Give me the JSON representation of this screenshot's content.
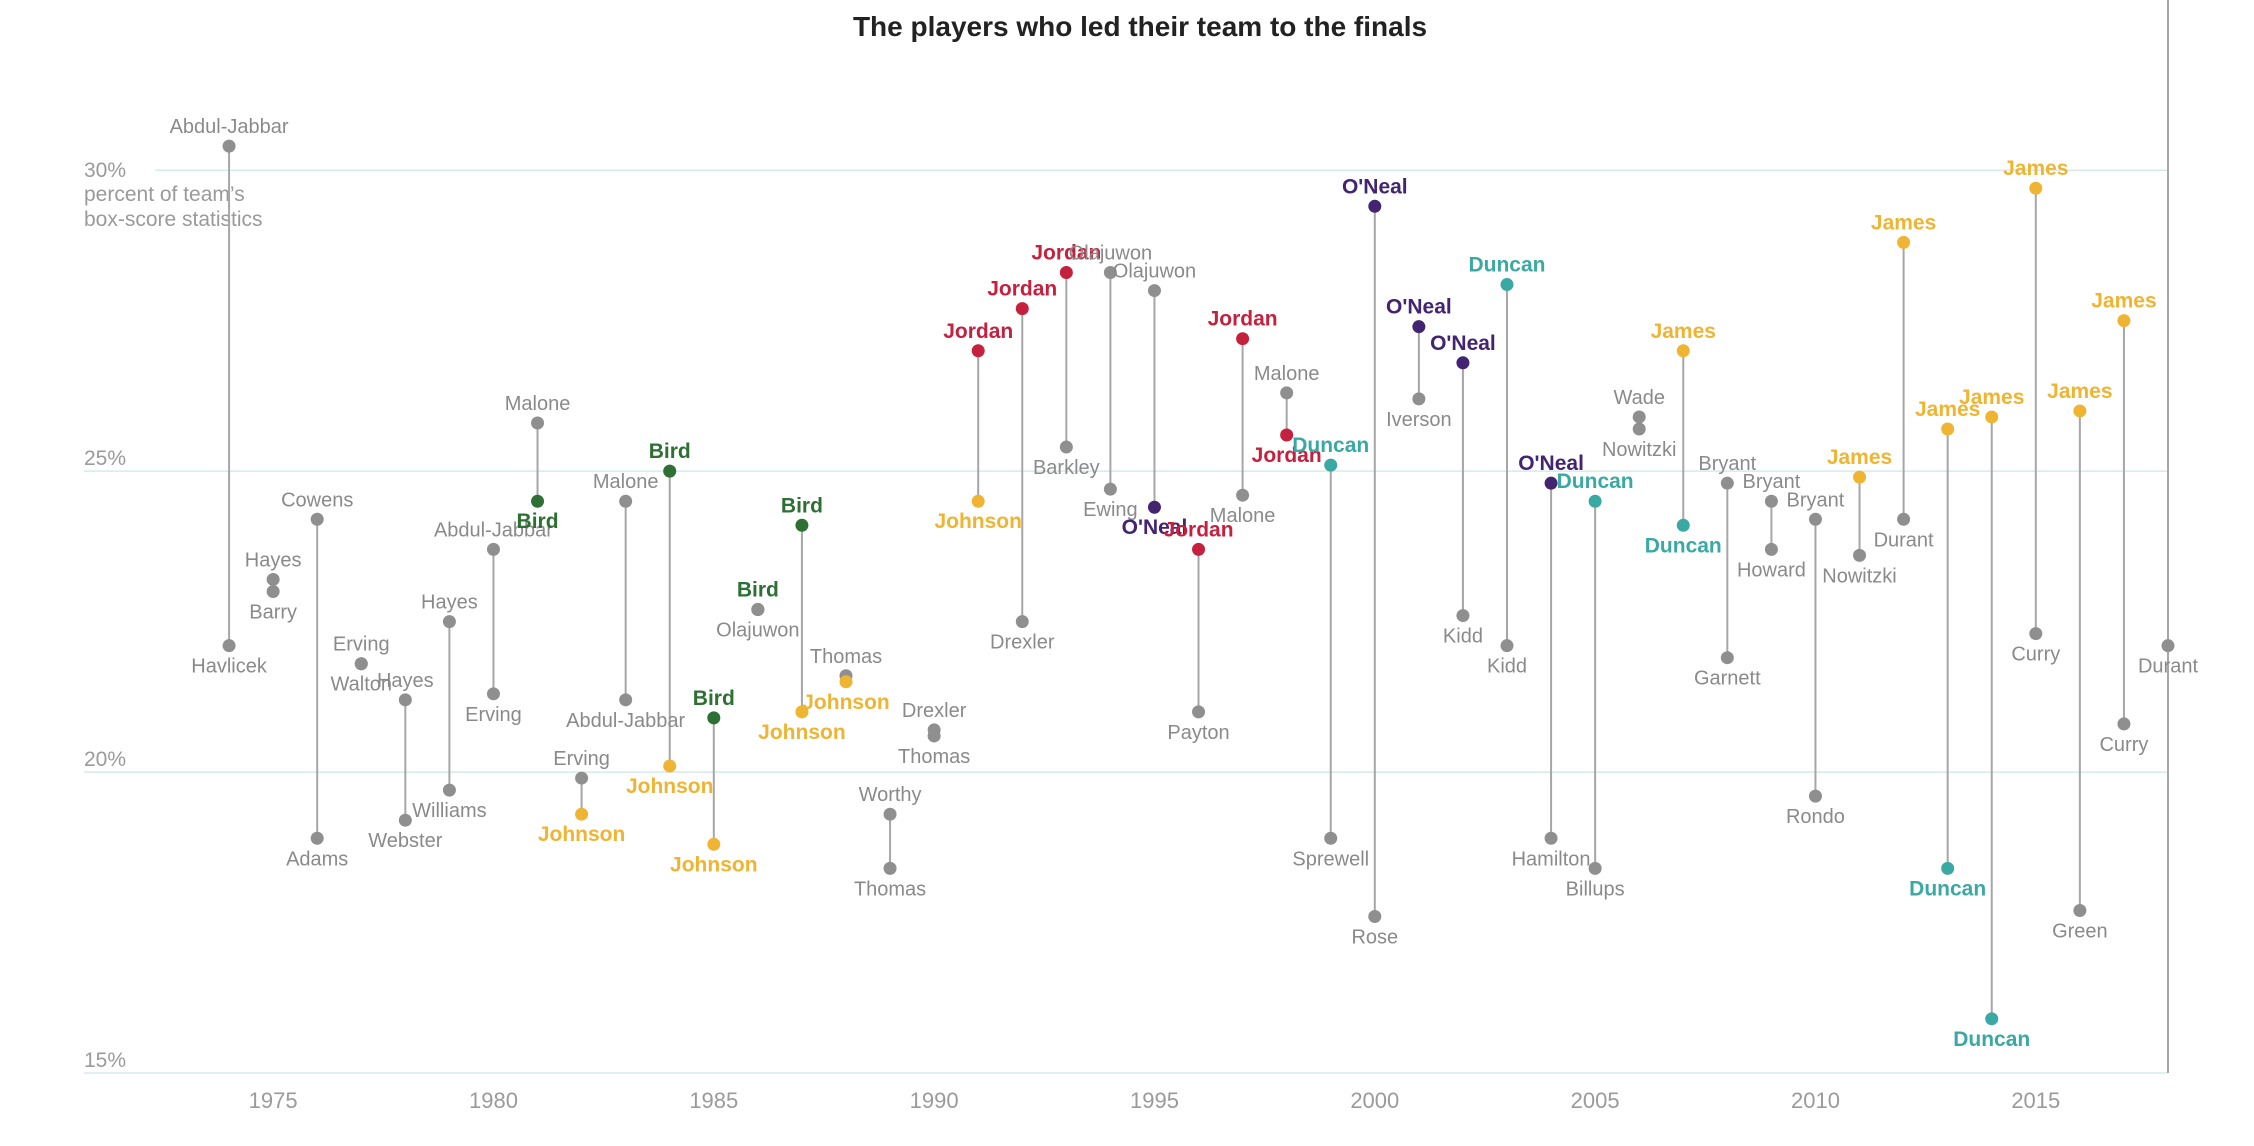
{
  "chart_data": {
    "type": "scatter",
    "title": "The players who led their team to the finals",
    "ylabel_unit": "percent of team’s box-score statistics",
    "y_first_tick_label": "30%",
    "xlim": [
      1973,
      2018
    ],
    "ylim": [
      15,
      31
    ],
    "x_ticks": [
      1975,
      1980,
      1985,
      1990,
      1995,
      2000,
      2005,
      2010,
      2015
    ],
    "y_ticks": [
      {
        "value": 15,
        "label": "15%"
      },
      {
        "value": 20,
        "label": "20%"
      },
      {
        "value": 25,
        "label": "25%"
      }
    ],
    "grid": true,
    "legend": "none",
    "colors": {
      "gray": "#8f8f8f",
      "Bird": "#2e7033",
      "Johnson": "#f0b433",
      "Jordan": "#c5203e",
      "O'Neal": "#432470",
      "Duncan": "#3aa9a3",
      "James": "#f0b433"
    },
    "finals": [
      {
        "year": 1974,
        "players": [
          {
            "name": "Abdul-Jabbar",
            "value": 30.4
          },
          {
            "name": "Havlicek",
            "value": 22.1
          }
        ]
      },
      {
        "year": 1975,
        "players": [
          {
            "name": "Hayes",
            "value": 23.2
          },
          {
            "name": "Barry",
            "value": 23.0
          }
        ]
      },
      {
        "year": 1976,
        "players": [
          {
            "name": "Cowens",
            "value": 24.2
          },
          {
            "name": "Adams",
            "value": 18.9
          }
        ]
      },
      {
        "year": 1977,
        "players": [
          {
            "name": "Erving",
            "value": 21.8
          },
          {
            "name": "Walton",
            "value": 21.8
          }
        ]
      },
      {
        "year": 1978,
        "players": [
          {
            "name": "Hayes",
            "value": 21.2
          },
          {
            "name": "Webster",
            "value": 19.2
          }
        ]
      },
      {
        "year": 1979,
        "players": [
          {
            "name": "Hayes",
            "value": 22.5
          },
          {
            "name": "Williams",
            "value": 19.7
          }
        ]
      },
      {
        "year": 1980,
        "players": [
          {
            "name": "Abdul-Jabbar",
            "value": 23.7
          },
          {
            "name": "Erving",
            "value": 21.3
          }
        ]
      },
      {
        "year": 1981,
        "players": [
          {
            "name": "Malone",
            "value": 25.8
          },
          {
            "name": "Bird",
            "value": 24.5,
            "team": "Bird"
          }
        ]
      },
      {
        "year": 1982,
        "players": [
          {
            "name": "Erving",
            "value": 19.9
          },
          {
            "name": "Johnson",
            "value": 19.3,
            "team": "Johnson"
          }
        ]
      },
      {
        "year": 1983,
        "players": [
          {
            "name": "Malone",
            "value": 24.5
          },
          {
            "name": "Abdul-Jabbar",
            "value": 21.2
          }
        ]
      },
      {
        "year": 1984,
        "players": [
          {
            "name": "Bird",
            "value": 25.0,
            "team": "Bird"
          },
          {
            "name": "Johnson",
            "value": 20.1,
            "team": "Johnson"
          }
        ]
      },
      {
        "year": 1985,
        "players": [
          {
            "name": "Bird",
            "value": 20.9,
            "team": "Bird"
          },
          {
            "name": "Johnson",
            "value": 18.8,
            "team": "Johnson"
          }
        ]
      },
      {
        "year": 1986,
        "players": [
          {
            "name": "Bird",
            "value": 22.7,
            "team": "Bird"
          },
          {
            "name": "Olajuwon",
            "value": 22.7
          }
        ]
      },
      {
        "year": 1987,
        "players": [
          {
            "name": "Bird",
            "value": 24.1,
            "team": "Bird"
          },
          {
            "name": "Johnson",
            "value": 21.0,
            "team": "Johnson"
          }
        ]
      },
      {
        "year": 1988,
        "players": [
          {
            "name": "Thomas",
            "value": 21.6
          },
          {
            "name": "Johnson",
            "value": 21.5,
            "team": "Johnson"
          }
        ]
      },
      {
        "year": 1989,
        "players": [
          {
            "name": "Worthy",
            "value": 19.3
          },
          {
            "name": "Thomas",
            "value": 18.4
          }
        ]
      },
      {
        "year": 1990,
        "players": [
          {
            "name": "Drexler",
            "value": 20.7
          },
          {
            "name": "Thomas",
            "value": 20.6
          }
        ]
      },
      {
        "year": 1991,
        "players": [
          {
            "name": "Jordan",
            "value": 27.0,
            "team": "Jordan"
          },
          {
            "name": "Johnson",
            "value": 24.5,
            "team": "Johnson"
          }
        ]
      },
      {
        "year": 1992,
        "players": [
          {
            "name": "Jordan",
            "value": 27.7,
            "team": "Jordan"
          },
          {
            "name": "Drexler",
            "value": 22.5
          }
        ]
      },
      {
        "year": 1993,
        "players": [
          {
            "name": "Jordan",
            "value": 28.3,
            "team": "Jordan"
          },
          {
            "name": "Barkley",
            "value": 25.4
          }
        ]
      },
      {
        "year": 1994,
        "players": [
          {
            "name": "Olajuwon",
            "value": 28.3
          },
          {
            "name": "Ewing",
            "value": 24.7
          }
        ]
      },
      {
        "year": 1995,
        "players": [
          {
            "name": "Olajuwon",
            "value": 28.0
          },
          {
            "name": "O'Neal",
            "value": 24.4,
            "team": "O'Neal"
          }
        ]
      },
      {
        "year": 1996,
        "players": [
          {
            "name": "Jordan",
            "value": 23.7,
            "team": "Jordan"
          },
          {
            "name": "Payton",
            "value": 21.0
          }
        ]
      },
      {
        "year": 1997,
        "players": [
          {
            "name": "Jordan",
            "value": 27.2,
            "team": "Jordan"
          },
          {
            "name": "Malone",
            "value": 24.6
          }
        ]
      },
      {
        "year": 1998,
        "players": [
          {
            "name": "Malone",
            "value": 26.3
          },
          {
            "name": "Jordan",
            "value": 25.6,
            "team": "Jordan"
          }
        ]
      },
      {
        "year": 1999,
        "players": [
          {
            "name": "Duncan",
            "value": 25.1,
            "team": "Duncan"
          },
          {
            "name": "Sprewell",
            "value": 18.9
          }
        ]
      },
      {
        "year": 2000,
        "players": [
          {
            "name": "O'Neal",
            "value": 29.4,
            "team": "O'Neal"
          },
          {
            "name": "Rose",
            "value": 17.6
          }
        ]
      },
      {
        "year": 2001,
        "players": [
          {
            "name": "O'Neal",
            "value": 27.4,
            "team": "O'Neal"
          },
          {
            "name": "Iverson",
            "value": 26.2
          }
        ]
      },
      {
        "year": 2002,
        "players": [
          {
            "name": "O'Neal",
            "value": 26.8,
            "team": "O'Neal"
          },
          {
            "name": "Kidd",
            "value": 22.6
          }
        ]
      },
      {
        "year": 2003,
        "players": [
          {
            "name": "Duncan",
            "value": 28.1,
            "team": "Duncan"
          },
          {
            "name": "Kidd",
            "value": 22.1
          }
        ]
      },
      {
        "year": 2004,
        "players": [
          {
            "name": "O'Neal",
            "value": 24.8,
            "team": "O'Neal"
          },
          {
            "name": "Hamilton",
            "value": 18.9
          }
        ]
      },
      {
        "year": 2005,
        "players": [
          {
            "name": "Duncan",
            "value": 24.5,
            "team": "Duncan"
          },
          {
            "name": "Billups",
            "value": 18.4
          }
        ]
      },
      {
        "year": 2006,
        "players": [
          {
            "name": "Wade",
            "value": 25.9
          },
          {
            "name": "Nowitzki",
            "value": 25.7
          }
        ]
      },
      {
        "year": 2007,
        "players": [
          {
            "name": "James",
            "value": 27.0,
            "team": "James"
          },
          {
            "name": "Duncan",
            "value": 24.1,
            "team": "Duncan"
          }
        ]
      },
      {
        "year": 2008,
        "players": [
          {
            "name": "Bryant",
            "value": 24.8
          },
          {
            "name": "Garnett",
            "value": 21.9
          }
        ]
      },
      {
        "year": 2009,
        "players": [
          {
            "name": "Bryant",
            "value": 24.5
          },
          {
            "name": "Howard",
            "value": 23.7
          }
        ]
      },
      {
        "year": 2010,
        "players": [
          {
            "name": "Bryant",
            "value": 24.2
          },
          {
            "name": "Rondo",
            "value": 19.6
          }
        ]
      },
      {
        "year": 2011,
        "players": [
          {
            "name": "James",
            "value": 24.9,
            "team": "James"
          },
          {
            "name": "Nowitzki",
            "value": 23.6
          }
        ]
      },
      {
        "year": 2012,
        "players": [
          {
            "name": "James",
            "value": 28.8,
            "team": "James"
          },
          {
            "name": "Durant",
            "value": 24.2
          }
        ]
      },
      {
        "year": 2013,
        "players": [
          {
            "name": "James",
            "value": 25.7,
            "team": "James"
          },
          {
            "name": "Duncan",
            "value": 18.4,
            "team": "Duncan"
          }
        ]
      },
      {
        "year": 2014,
        "players": [
          {
            "name": "James",
            "value": 25.9,
            "team": "James"
          },
          {
            "name": "Duncan",
            "value": 15.9,
            "team": "Duncan"
          }
        ]
      },
      {
        "year": 2015,
        "players": [
          {
            "name": "James",
            "value": 29.7,
            "team": "James"
          },
          {
            "name": "Curry",
            "value": 22.3
          }
        ]
      },
      {
        "year": 2016,
        "players": [
          {
            "name": "James",
            "value": 26.0,
            "team": "James"
          },
          {
            "name": "Green",
            "value": 17.7
          }
        ]
      },
      {
        "year": 2017,
        "players": [
          {
            "name": "James",
            "value": 27.5,
            "team": "James"
          },
          {
            "name": "Curry",
            "value": 20.8
          }
        ]
      },
      {
        "year": 2018,
        "players": [
          {
            "name": "Durant",
            "value": 22.1
          }
        ]
      }
    ]
  }
}
